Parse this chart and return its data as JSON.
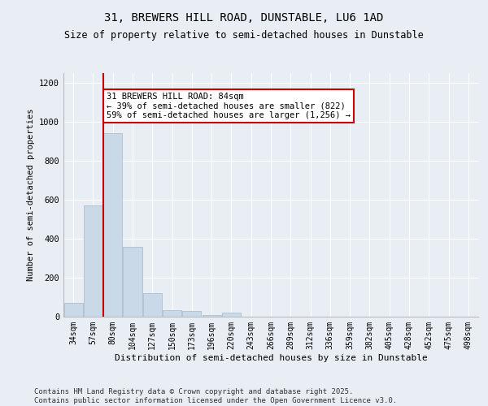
{
  "title1": "31, BREWERS HILL ROAD, DUNSTABLE, LU6 1AD",
  "title2": "Size of property relative to semi-detached houses in Dunstable",
  "xlabel": "Distribution of semi-detached houses by size in Dunstable",
  "ylabel": "Number of semi-detached properties",
  "bins": [
    "34sqm",
    "57sqm",
    "80sqm",
    "104sqm",
    "127sqm",
    "150sqm",
    "173sqm",
    "196sqm",
    "220sqm",
    "243sqm",
    "266sqm",
    "289sqm",
    "312sqm",
    "336sqm",
    "359sqm",
    "382sqm",
    "405sqm",
    "428sqm",
    "452sqm",
    "475sqm",
    "498sqm"
  ],
  "values": [
    70,
    570,
    940,
    360,
    120,
    35,
    30,
    10,
    20,
    0,
    0,
    0,
    0,
    0,
    0,
    0,
    0,
    0,
    0,
    0,
    0
  ],
  "bar_color": "#c9d9e8",
  "bar_edgecolor": "#a0b8cc",
  "vline_color": "#cc0000",
  "vline_x_index": 2,
  "annotation_text": "31 BREWERS HILL ROAD: 84sqm\n← 39% of semi-detached houses are smaller (822)\n59% of semi-detached houses are larger (1,256) →",
  "ylim": [
    0,
    1250
  ],
  "yticks": [
    0,
    200,
    400,
    600,
    800,
    1000,
    1200
  ],
  "bg_color": "#e8eef4",
  "footer": "Contains HM Land Registry data © Crown copyright and database right 2025.\nContains public sector information licensed under the Open Government Licence v3.0."
}
